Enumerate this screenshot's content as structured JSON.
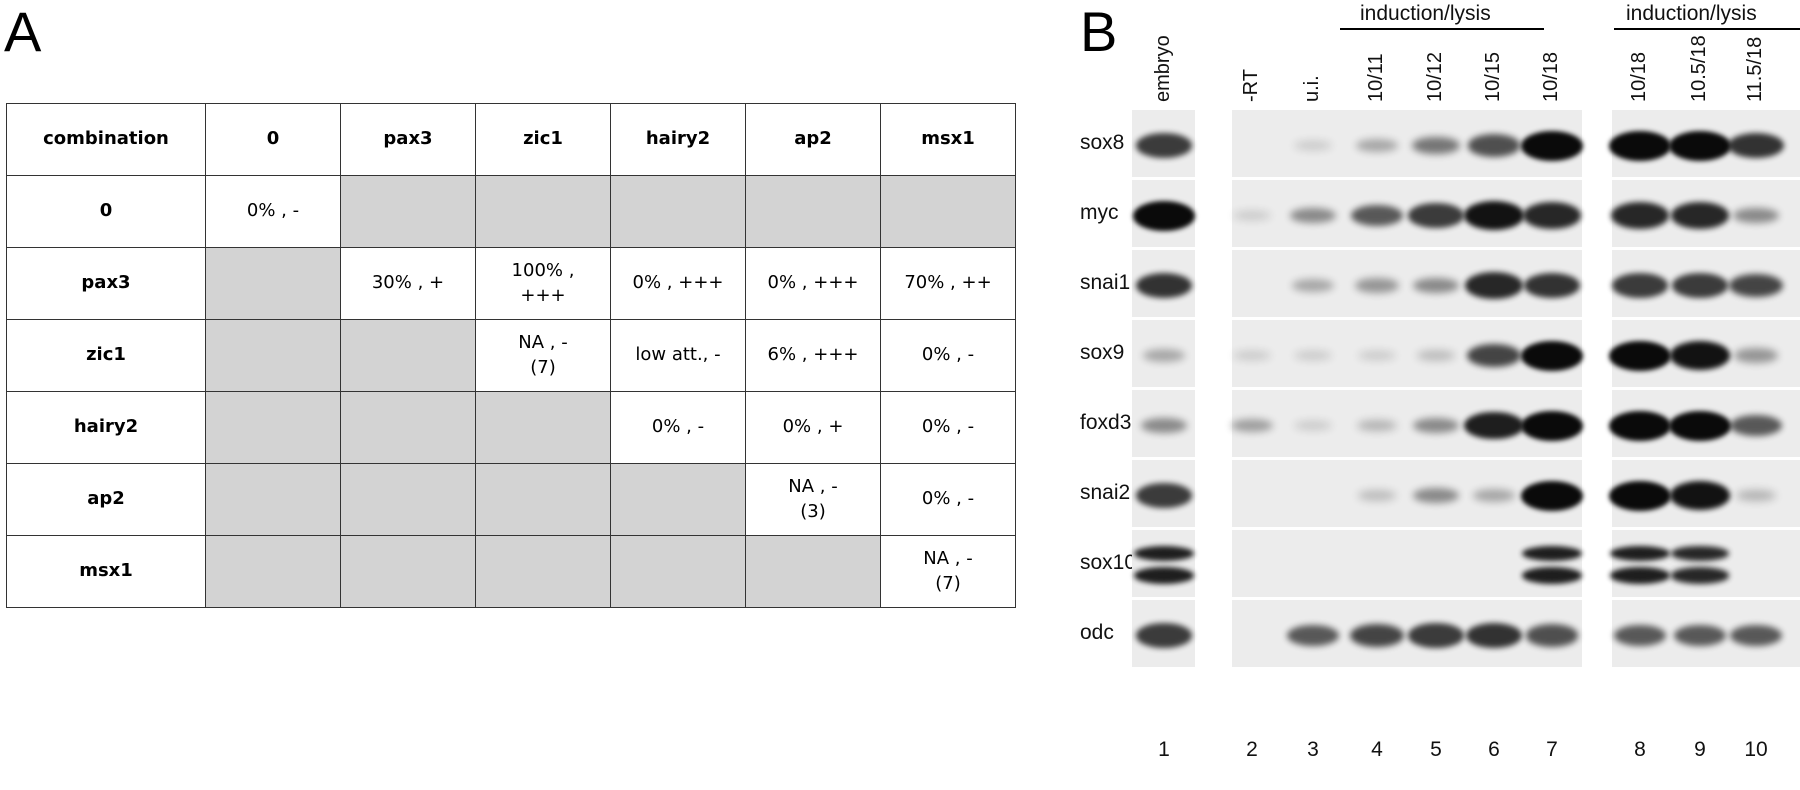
{
  "panelA": {
    "letter": "A",
    "columns": [
      "combination",
      "0",
      "pax3",
      "zic1",
      "hairy2",
      "ap2",
      "msx1"
    ],
    "rows": [
      {
        "label": "0",
        "cells": [
          "0% , -",
          null,
          null,
          null,
          null,
          null
        ]
      },
      {
        "label": "pax3",
        "cells": [
          null,
          "30% , +",
          "100% ,\n+++",
          "0% , +++",
          "0% , +++",
          "70% , ++"
        ]
      },
      {
        "label": "zic1",
        "cells": [
          null,
          null,
          "NA , -\n(7)",
          "low att., -",
          "6% , +++",
          "0% , -"
        ]
      },
      {
        "label": "hairy2",
        "cells": [
          null,
          null,
          null,
          "0% , -",
          "0% , +",
          "0% , -"
        ]
      },
      {
        "label": "ap2",
        "cells": [
          null,
          null,
          null,
          null,
          "NA , -\n(3)",
          "0% , -"
        ]
      },
      {
        "label": "msx1",
        "cells": [
          null,
          null,
          null,
          null,
          null,
          "NA , -\n(7)"
        ]
      }
    ]
  },
  "panelB": {
    "letter": "B",
    "group_label": "induction/lysis",
    "lanes": [
      {
        "num": "1",
        "label": "embryo"
      },
      {
        "num": "2",
        "label": "-RT"
      },
      {
        "num": "3",
        "label": "u.i."
      },
      {
        "num": "4",
        "label": "10/11"
      },
      {
        "num": "5",
        "label": "10/12"
      },
      {
        "num": "6",
        "label": "10/15"
      },
      {
        "num": "7",
        "label": "10/18"
      },
      {
        "num": "8",
        "label": "10/18"
      },
      {
        "num": "9",
        "label": "10.5/18"
      },
      {
        "num": "10",
        "label": "11.5/18"
      }
    ],
    "genes": [
      {
        "name": "sox8",
        "intensity": [
          0.75,
          0,
          0.05,
          0.2,
          0.45,
          0.65,
          1.0,
          1.0,
          1.0,
          0.8
        ]
      },
      {
        "name": "myc",
        "intensity": [
          1.0,
          0.05,
          0.35,
          0.6,
          0.75,
          0.95,
          0.85,
          0.85,
          0.85,
          0.35
        ]
      },
      {
        "name": "snai1",
        "intensity": [
          0.8,
          0,
          0.2,
          0.3,
          0.35,
          0.85,
          0.8,
          0.75,
          0.75,
          0.7
        ]
      },
      {
        "name": "sox9",
        "intensity": [
          0.2,
          0.05,
          0.05,
          0.05,
          0.1,
          0.7,
          1.0,
          1.0,
          0.95,
          0.3
        ]
      },
      {
        "name": "foxd3",
        "intensity": [
          0.35,
          0.25,
          0.05,
          0.15,
          0.35,
          0.9,
          1.0,
          1.0,
          1.0,
          0.6
        ]
      },
      {
        "name": "snai2",
        "intensity": [
          0.75,
          0,
          0,
          0.1,
          0.35,
          0.2,
          1.0,
          1.0,
          0.95,
          0.15
        ]
      },
      {
        "name": "sox10",
        "intensity": [
          0.9,
          0,
          0,
          0,
          0,
          0,
          0.9,
          0.9,
          0.85,
          0
        ]
      },
      {
        "name": "odc",
        "intensity": [
          0.75,
          0,
          0.6,
          0.7,
          0.75,
          0.8,
          0.65,
          0.6,
          0.6,
          0.6
        ]
      }
    ],
    "colors": {
      "strip_background": "#ececec",
      "band": "#0a0a0a"
    }
  }
}
